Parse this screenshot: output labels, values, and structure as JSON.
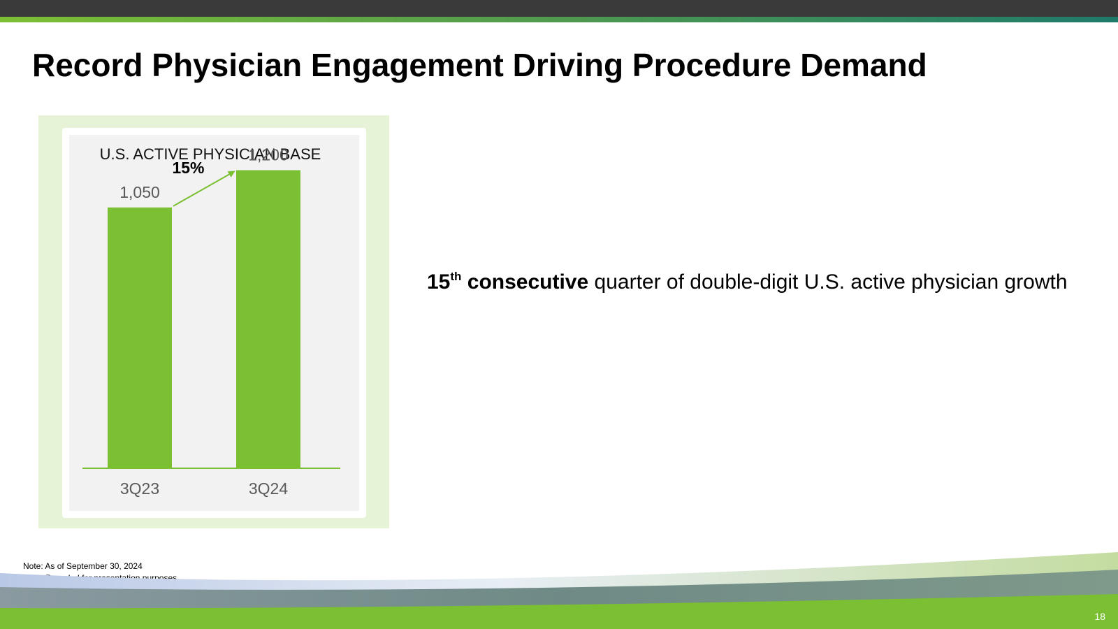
{
  "slide": {
    "title": "Record Physician Engagement Driving Procedure Demand",
    "page_number": "18"
  },
  "callout": {
    "number": "15",
    "superscript": "th",
    "bold_text": "consecutive",
    "text": "quarter of double-digit U.S. active physician growth"
  },
  "notes": [
    "Note: As of September 30, 2024",
    "Note: Rounded for presentation purposes."
  ],
  "chart_data": {
    "type": "bar",
    "title": "U.S. ACTIVE PHYSICIAN BASE",
    "categories": [
      "3Q23",
      "3Q24"
    ],
    "values": [
      1050,
      1200
    ],
    "value_labels": [
      "1,050",
      "1,200"
    ],
    "growth_annotation": "15%",
    "xlabel": "",
    "ylabel": "",
    "ylim": [
      0,
      1300
    ],
    "grid": false,
    "legend": "none"
  },
  "colors": {
    "bar": "#7bbf32",
    "panel_background": "#e6f3d7",
    "plot_background": "#f2f2f2",
    "arrow": "#7bbf32",
    "top_bar": "#3a3a3a"
  }
}
